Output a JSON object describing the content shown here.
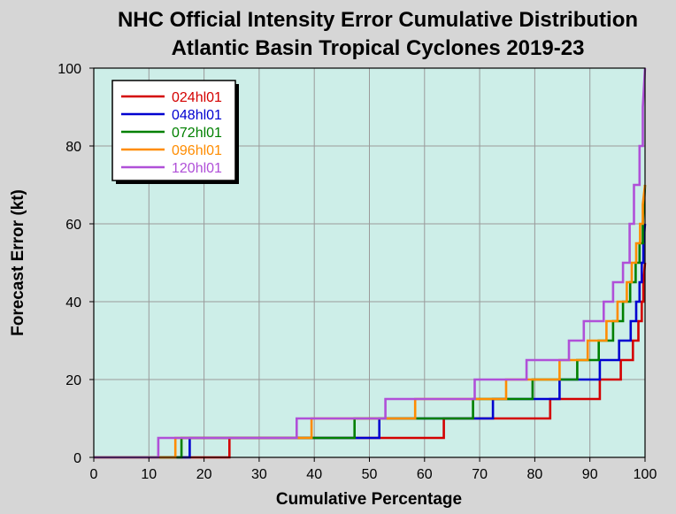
{
  "chart_data": {
    "type": "line",
    "title": "NHC Official Intensity Error Cumulative Distribution",
    "subtitle": "Atlantic Basin Tropical Cyclones 2019-23",
    "xlabel": "Cumulative Percentage",
    "ylabel": "Forecast Error (kt)",
    "xlim": [
      0,
      100
    ],
    "ylim": [
      0,
      100
    ],
    "x_ticks": [
      0,
      10,
      20,
      30,
      40,
      50,
      60,
      70,
      80,
      90,
      100
    ],
    "y_ticks": [
      0,
      20,
      40,
      60,
      80,
      100
    ],
    "x_tick_labels": [
      "0",
      "10",
      "20",
      "30",
      "40",
      "50",
      "60",
      "70",
      "80",
      "90",
      "100"
    ],
    "y_tick_labels": [
      "0",
      "20",
      "40",
      "60",
      "80",
      "100"
    ],
    "grid": true,
    "legend_position": "top-left",
    "plot_background": "#cdeee8",
    "page_background": "#d6d6d6",
    "series": [
      {
        "name": "024hl01",
        "color": "#d40000",
        "x": [
          0,
          24.6,
          24.6,
          63.5,
          63.5,
          82.8,
          82.8,
          91.8,
          91.8,
          95.6,
          95.6,
          97.8,
          97.8,
          98.8,
          98.8,
          99.4,
          99.4,
          99.7,
          99.7,
          100
        ],
        "y": [
          0,
          0,
          5,
          5,
          10,
          10,
          15,
          15,
          20,
          20,
          25,
          25,
          30,
          30,
          35,
          35,
          40,
          40,
          45,
          50
        ]
      },
      {
        "name": "048hl01",
        "color": "#0000d0",
        "x": [
          0,
          17.4,
          17.4,
          51.8,
          51.8,
          72.4,
          72.4,
          84.5,
          84.5,
          91.8,
          91.8,
          95.3,
          95.3,
          97.4,
          97.4,
          98.4,
          98.4,
          99.0,
          99.0,
          99.4,
          99.4,
          99.7,
          99.7,
          100
        ],
        "y": [
          0,
          0,
          5,
          5,
          10,
          10,
          15,
          15,
          20,
          20,
          25,
          25,
          30,
          30,
          35,
          35,
          40,
          40,
          45,
          45,
          50,
          50,
          55,
          60
        ]
      },
      {
        "name": "072hl01",
        "color": "#008000",
        "x": [
          0,
          15.9,
          15.9,
          47.3,
          47.3,
          68.8,
          68.8,
          79.6,
          79.6,
          87.7,
          87.7,
          91.6,
          91.6,
          94.2,
          94.2,
          96.0,
          96.0,
          97.3,
          97.3,
          98.3,
          98.3,
          99.0,
          99.0,
          99.6,
          99.6,
          100
        ],
        "y": [
          0,
          0,
          5,
          5,
          10,
          10,
          15,
          15,
          20,
          20,
          25,
          25,
          30,
          30,
          35,
          35,
          40,
          40,
          45,
          45,
          50,
          50,
          55,
          55,
          60,
          70
        ]
      },
      {
        "name": "096hl01",
        "color": "#ff8c00",
        "x": [
          0,
          14.8,
          14.8,
          39.5,
          39.5,
          58.3,
          58.3,
          74.8,
          74.8,
          84.5,
          84.5,
          89.6,
          89.6,
          93.0,
          93.0,
          95.0,
          95.0,
          96.7,
          96.7,
          97.6,
          97.6,
          98.4,
          98.4,
          99.1,
          99.1,
          99.6,
          99.6,
          100
        ],
        "y": [
          0,
          0,
          5,
          5,
          10,
          10,
          15,
          15,
          20,
          20,
          25,
          25,
          30,
          30,
          35,
          35,
          40,
          40,
          45,
          45,
          50,
          50,
          55,
          55,
          60,
          60,
          65,
          70
        ]
      },
      {
        "name": "120hl01",
        "color": "#b050d8",
        "x": [
          0,
          11.7,
          11.7,
          36.8,
          36.8,
          52.9,
          52.9,
          69.1,
          69.1,
          78.5,
          78.5,
          86.2,
          86.2,
          88.9,
          88.9,
          92.5,
          92.5,
          94.2,
          94.2,
          96.0,
          96.0,
          97.2,
          97.2,
          98.0,
          98.0,
          99.0,
          99.0,
          99.6,
          99.6,
          100
        ],
        "y": [
          0,
          0,
          5,
          5,
          10,
          10,
          15,
          15,
          20,
          20,
          25,
          25,
          30,
          30,
          35,
          35,
          40,
          40,
          45,
          45,
          50,
          50,
          60,
          60,
          70,
          70,
          80,
          80,
          90,
          100
        ]
      }
    ]
  }
}
